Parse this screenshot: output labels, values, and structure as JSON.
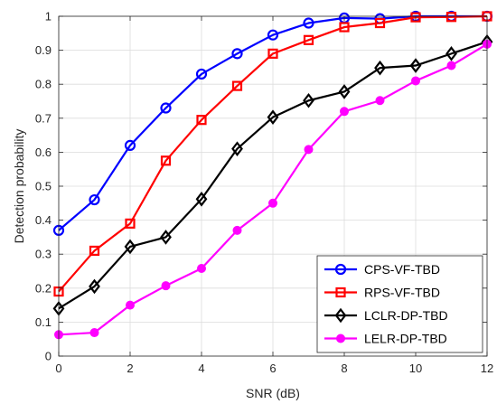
{
  "chart_data": {
    "type": "line",
    "xlabel": "SNR (dB)",
    "ylabel": "Detection probability",
    "xlim": [
      0,
      12
    ],
    "ylim": [
      0,
      1
    ],
    "xticks": [
      0,
      2,
      4,
      6,
      8,
      10,
      12
    ],
    "yticks": [
      0,
      0.1,
      0.2,
      0.3,
      0.4,
      0.5,
      0.6,
      0.7,
      0.8,
      0.9,
      1
    ],
    "xtick_labels": [
      "0",
      "2",
      "4",
      "6",
      "8",
      "10",
      "12"
    ],
    "ytick_labels": [
      "0",
      "0.1",
      "0.2",
      "0.3",
      "0.4",
      "0.5",
      "0.6",
      "0.7",
      "0.8",
      "0.9",
      "1"
    ],
    "grid": true,
    "legend_position": "bottom-right",
    "x": [
      0,
      1,
      2,
      3,
      4,
      5,
      6,
      7,
      8,
      9,
      10,
      11,
      12
    ],
    "series": [
      {
        "name": "CPS-VF-TBD",
        "color": "#0000ff",
        "marker": "circle",
        "values": [
          0.37,
          0.46,
          0.62,
          0.73,
          0.83,
          0.89,
          0.945,
          0.98,
          0.995,
          0.993,
          1.0,
          1.0,
          1.0
        ]
      },
      {
        "name": "RPS-VF-TBD",
        "color": "#ff0000",
        "marker": "square",
        "values": [
          0.19,
          0.31,
          0.39,
          0.575,
          0.695,
          0.795,
          0.89,
          0.93,
          0.968,
          0.98,
          0.997,
          0.998,
          1.0
        ]
      },
      {
        "name": "LCLR-DP-TBD",
        "color": "#000000",
        "marker": "diamond",
        "values": [
          0.14,
          0.205,
          0.322,
          0.35,
          0.462,
          0.61,
          0.703,
          0.752,
          0.778,
          0.848,
          0.855,
          0.89,
          0.925
        ]
      },
      {
        "name": "LELR-DP-TBD",
        "color": "#ff00ff",
        "marker": "circle-filled",
        "values": [
          0.063,
          0.069,
          0.15,
          0.207,
          0.258,
          0.37,
          0.45,
          0.608,
          0.72,
          0.752,
          0.81,
          0.855,
          0.918
        ]
      }
    ]
  }
}
